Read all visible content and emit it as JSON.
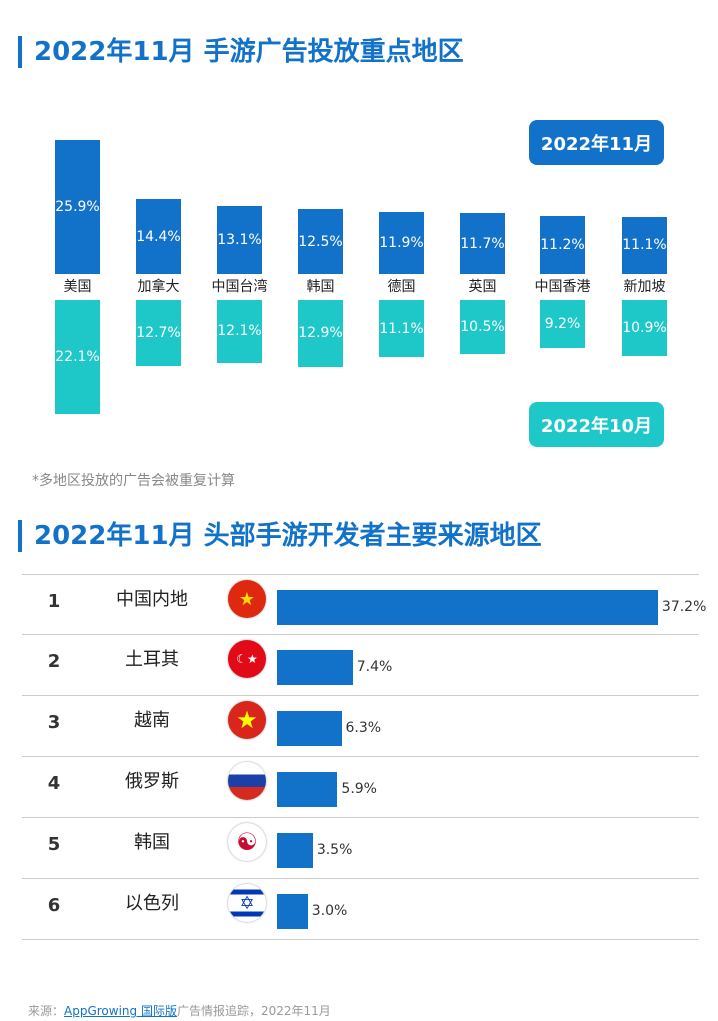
{
  "section1": {
    "title": "2022年11月 手游广告投放重点地区",
    "legend_nov": "2022年11月",
    "legend_oct": "2022年10月",
    "note": "*多地区投放的广告会被重复计算"
  },
  "chart_data": [
    {
      "type": "bar",
      "title": "2022年11月 手游广告投放重点地区",
      "categories": [
        "美国",
        "加拿大",
        "中国台湾",
        "韩国",
        "德国",
        "英国",
        "中国香港",
        "新加坡"
      ],
      "series": [
        {
          "name": "2022年11月",
          "values": [
            25.9,
            14.4,
            13.1,
            12.5,
            11.9,
            11.7,
            11.2,
            11.1
          ],
          "labels": [
            "25.9%",
            "14.4%",
            "13.1%",
            "12.5%",
            "11.9%",
            "11.7%",
            "11.2%",
            "11.1%"
          ],
          "color": "#1272c9"
        },
        {
          "name": "2022年10月",
          "values": [
            22.1,
            12.7,
            12.1,
            12.9,
            11.1,
            10.5,
            9.2,
            10.9
          ],
          "labels": [
            "22.1%",
            "12.7%",
            "12.1%",
            "12.9%",
            "11.1%",
            "10.5%",
            "9.2%",
            "10.9%"
          ],
          "color": "#1fc8c8"
        }
      ],
      "unit": "%",
      "legend_placement": "right"
    },
    {
      "type": "bar",
      "orientation": "horizontal",
      "title": "2022年11月 头部手游开发者主要来源地区",
      "ranks": [
        "1",
        "2",
        "3",
        "4",
        "5",
        "6"
      ],
      "categories": [
        "中国内地",
        "土耳其",
        "越南",
        "俄罗斯",
        "韩国",
        "以色列"
      ],
      "flags": [
        "flag-china-icon",
        "flag-turkey-icon",
        "flag-vietnam-icon",
        "flag-russia-icon",
        "flag-korea-icon",
        "flag-israel-icon"
      ],
      "values": [
        37.2,
        7.4,
        6.3,
        5.9,
        3.5,
        3.0
      ],
      "labels": [
        "37.2%",
        "7.4%",
        "6.3%",
        "5.9%",
        "3.5%",
        "3.0%"
      ],
      "color": "#1272c9"
    }
  ],
  "section2": {
    "title": "2022年11月 头部手游开发者主要来源地区"
  },
  "source": {
    "prefix": "来源：",
    "link": "AppGrowing 国际版",
    "suffix": "广告情报追踪，2022年11月"
  }
}
